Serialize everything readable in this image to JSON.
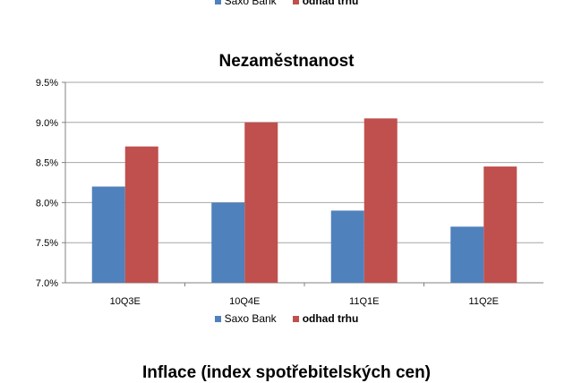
{
  "legend": [
    {
      "name": "Saxo Bank",
      "color": "#4f81bd"
    },
    {
      "name": "odhad trhu",
      "color": "#c0504d"
    }
  ],
  "next_chart_title": "Inflace (index spotřebitelských cen)",
  "chart_data": {
    "type": "bar",
    "title": "Nezaměstnanost",
    "categories": [
      "10Q3E",
      "10Q4E",
      "11Q1E",
      "11Q2E"
    ],
    "series": [
      {
        "name": "Saxo Bank",
        "color": "#4f81bd",
        "values": [
          8.2,
          8.0,
          7.9,
          7.7
        ]
      },
      {
        "name": "odhad trhu",
        "color": "#c0504d",
        "values": [
          8.7,
          9.0,
          9.05,
          8.45
        ]
      }
    ],
    "ylim": [
      7.0,
      9.5
    ],
    "yticks": [
      "7.0%",
      "7.5%",
      "8.0%",
      "8.5%",
      "9.0%",
      "9.5%"
    ],
    "ytick_values": [
      7.0,
      7.5,
      8.0,
      8.5,
      9.0,
      9.5
    ],
    "grid": true,
    "legend_position": "bottom"
  }
}
